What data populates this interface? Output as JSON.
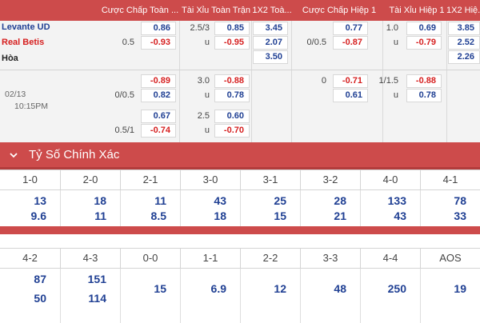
{
  "headers": {
    "ah_full": "Cược Chấp Toàn ...",
    "ou_full": "Tài Xỉu Toàn Trận",
    "x12_full": "1X2 Toà...",
    "ah_half": "Cược Chấp Hiệp 1",
    "ou_half": "Tài Xỉu Hiệp 1",
    "x12_half": "1X2 Hiệ..."
  },
  "match": {
    "home": "Levante UD",
    "away": "Real Betis",
    "draw": "Hòa",
    "date": "02/13",
    "time": "10:15PM"
  },
  "main_line": {
    "ah_full": {
      "line": "0.5",
      "home": "0.86",
      "away": "-0.93"
    },
    "ou_full": {
      "line": "2.5/3",
      "under": "u",
      "over": "0.85",
      "under_odds": "-0.95"
    },
    "x12_full": {
      "home": "3.45",
      "away": "2.07",
      "draw": "3.50"
    },
    "ah_half": {
      "line": "0/0.5",
      "home": "0.77",
      "away": "-0.87"
    },
    "ou_half": {
      "line": "1.0",
      "under": "u",
      "over": "0.69",
      "under_odds": "-0.79"
    },
    "x12_half": {
      "home": "3.85",
      "away": "2.52",
      "draw": "2.26"
    }
  },
  "alt_lines": [
    {
      "ah_full": {
        "line": "0/0.5",
        "home": "-0.89",
        "away": "0.82"
      },
      "ou_full": {
        "line": "3.0",
        "under": "u",
        "over": "-0.88",
        "under_odds": "0.78"
      },
      "ah_half": {
        "line": "0",
        "home": "-0.71",
        "away": "0.61"
      },
      "ou_half": {
        "line": "1/1.5",
        "under": "u",
        "over": "-0.88",
        "under_odds": "0.78"
      }
    },
    {
      "ah_full": {
        "line": "0.5/1",
        "home": "0.67",
        "away": "-0.74"
      },
      "ou_full": {
        "line": "2.5",
        "under": "u",
        "over": "0.60",
        "under_odds": "-0.70"
      }
    }
  ],
  "correct_score": {
    "title": "Tỷ Số Chính Xác",
    "row1": [
      {
        "score": "1-0",
        "a": "13",
        "b": "9.6"
      },
      {
        "score": "2-0",
        "a": "18",
        "b": "11"
      },
      {
        "score": "2-1",
        "a": "11",
        "b": "8.5"
      },
      {
        "score": "3-0",
        "a": "43",
        "b": "18"
      },
      {
        "score": "3-1",
        "a": "25",
        "b": "15"
      },
      {
        "score": "3-2",
        "a": "28",
        "b": "21"
      },
      {
        "score": "4-0",
        "a": "133",
        "b": "43"
      },
      {
        "score": "4-1",
        "a": "78",
        "b": "33"
      }
    ],
    "row2": [
      {
        "score": "4-2",
        "a": "87",
        "b": "50"
      },
      {
        "score": "4-3",
        "a": "151",
        "b": "114"
      },
      {
        "score": "0-0",
        "m": "15"
      },
      {
        "score": "1-1",
        "m": "6.9"
      },
      {
        "score": "2-2",
        "m": "12"
      },
      {
        "score": "3-3",
        "m": "48"
      },
      {
        "score": "4-4",
        "m": "250"
      },
      {
        "score": "AOS",
        "m": "19"
      }
    ]
  },
  "colors": {
    "accent": "#cd4b4b",
    "positive": "#1f3f93",
    "negative": "#d61f1f"
  },
  "icons": {
    "collapse": "chevron-down-icon"
  }
}
